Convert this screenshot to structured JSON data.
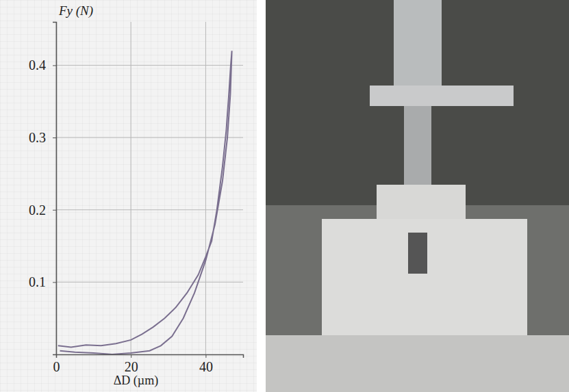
{
  "chart_data": {
    "type": "line",
    "x_label": "ΔD (µm)",
    "y_label": "Fy (N)",
    "xlim": [
      0,
      50
    ],
    "ylim": [
      0,
      0.46
    ],
    "xticks": [
      0,
      20,
      40
    ],
    "yticks": [
      0.1,
      0.2,
      0.3,
      0.4
    ],
    "grid": true,
    "x": [
      0.5,
      4,
      8,
      12,
      16,
      20,
      23,
      26,
      29,
      32,
      35,
      38,
      40,
      41.6,
      43,
      44.5,
      45.5,
      46.2,
      46.7,
      47,
      46.6,
      45.8,
      44.5,
      42.5,
      40,
      37,
      34,
      31,
      28,
      25,
      20,
      15,
      10,
      5,
      1
    ],
    "series": [
      {
        "color": "#7a6f8f",
        "line_style": "solid",
        "values": [
          0.012,
          0.01,
          0.013,
          0.012,
          0.015,
          0.02,
          0.028,
          0.038,
          0.05,
          0.065,
          0.085,
          0.11,
          0.135,
          0.157,
          0.2,
          0.26,
          0.31,
          0.36,
          0.4,
          0.42,
          0.36,
          0.3,
          0.24,
          0.18,
          0.13,
          0.085,
          0.05,
          0.025,
          0.012,
          0.005,
          0.002,
          0,
          0.002,
          0.003,
          0.005
        ]
      }
    ]
  }
}
